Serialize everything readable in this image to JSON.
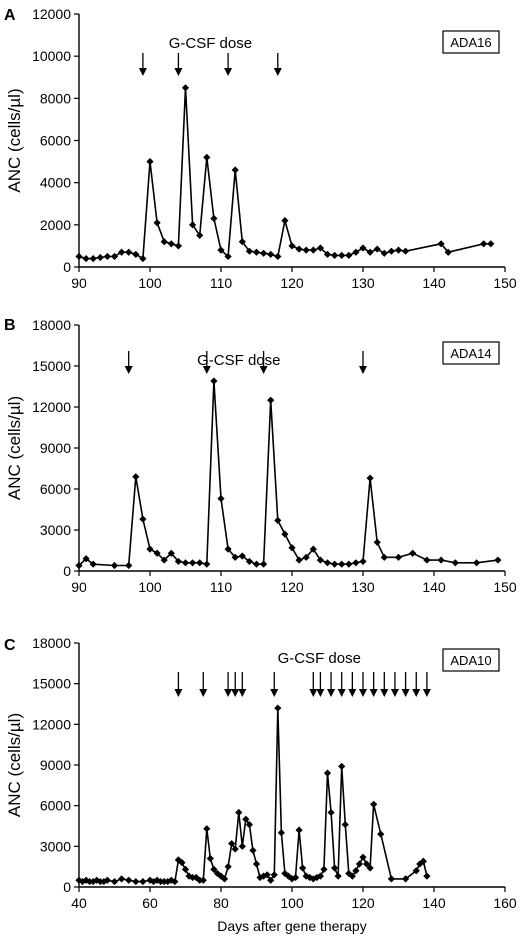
{
  "chart_data": [
    {
      "type": "line",
      "panel": "A",
      "tag": "ADA16",
      "annotation": "G-CSF dose",
      "ylabel": "ANC (cells/µl)",
      "xlabel": "",
      "xlim": [
        90,
        150
      ],
      "ylim": [
        0,
        12000
      ],
      "xticks": [
        90,
        100,
        110,
        120,
        130,
        140,
        150
      ],
      "yticks": [
        0,
        2000,
        4000,
        6000,
        8000,
        10000,
        12000
      ],
      "ytick_labels": [
        "0",
        "2000",
        "4000",
        "6000",
        "8000",
        "10000",
        "12000"
      ],
      "dose_days": [
        99,
        104,
        111,
        118
      ],
      "series": [
        {
          "x": [
            90,
            91,
            92,
            93,
            94,
            95,
            96,
            97,
            98,
            99,
            100,
            101,
            102,
            103,
            104,
            105,
            106,
            107,
            108,
            109,
            110,
            111,
            112,
            113,
            114,
            115,
            116,
            117,
            118,
            119,
            120,
            121,
            122,
            123,
            124,
            125,
            126,
            127,
            128,
            129,
            130,
            131,
            132,
            133,
            134,
            135,
            136,
            141,
            142,
            147,
            148
          ],
          "y": [
            500,
            400,
            400,
            450,
            500,
            500,
            700,
            700,
            600,
            400,
            5000,
            2100,
            1200,
            1100,
            1000,
            8500,
            2000,
            1500,
            5200,
            2300,
            800,
            500,
            4600,
            1200,
            750,
            700,
            650,
            600,
            500,
            2200,
            1000,
            850,
            800,
            800,
            900,
            600,
            550,
            550,
            550,
            700,
            900,
            700,
            850,
            650,
            750,
            800,
            750,
            1100,
            700,
            1100,
            1100
          ]
        }
      ]
    },
    {
      "type": "line",
      "panel": "B",
      "tag": "ADA14",
      "annotation": "G-CSF dose",
      "ylabel": "ANC (cells/µl)",
      "xlabel": "",
      "xlim": [
        90,
        150
      ],
      "ylim": [
        0,
        18000
      ],
      "xticks": [
        90,
        100,
        110,
        120,
        130,
        140,
        150
      ],
      "yticks": [
        0,
        3000,
        6000,
        9000,
        12000,
        15000,
        18000
      ],
      "ytick_labels": [
        "0",
        "3000",
        "6000",
        "9000",
        "12000",
        "15000",
        "18000"
      ],
      "dose_days": [
        97,
        108,
        116,
        130
      ],
      "series": [
        {
          "x": [
            90,
            91,
            92,
            95,
            97,
            98,
            99,
            100,
            101,
            102,
            103,
            104,
            105,
            106,
            107,
            108,
            109,
            110,
            111,
            112,
            113,
            114,
            115,
            116,
            117,
            118,
            119,
            120,
            121,
            122,
            123,
            124,
            125,
            126,
            127,
            128,
            129,
            130,
            131,
            132,
            133,
            135,
            137,
            139,
            141,
            143,
            146,
            149
          ],
          "y": [
            400,
            900,
            500,
            400,
            400,
            6900,
            3800,
            1600,
            1300,
            800,
            1300,
            700,
            600,
            600,
            600,
            500,
            13900,
            5300,
            1600,
            1000,
            1100,
            700,
            500,
            500,
            12500,
            3700,
            2700,
            1700,
            800,
            1000,
            1600,
            800,
            600,
            500,
            500,
            500,
            600,
            700,
            6800,
            2100,
            1000,
            1000,
            1300,
            800,
            800,
            600,
            600,
            800
          ]
        }
      ]
    },
    {
      "type": "line",
      "panel": "C",
      "tag": "ADA10",
      "annotation": "G-CSF dose",
      "ylabel": "ANC (cells/µl)",
      "xlabel": "Days after gene therapy",
      "xlim": [
        40,
        160
      ],
      "ylim": [
        0,
        18000
      ],
      "xticks": [
        40,
        60,
        80,
        100,
        120,
        140,
        160
      ],
      "yticks": [
        0,
        3000,
        6000,
        9000,
        12000,
        15000,
        18000
      ],
      "ytick_labels": [
        "0",
        "3000",
        "6000",
        "9000",
        "12000",
        "15000",
        "18000"
      ],
      "dose_days": [
        68,
        75,
        82,
        84,
        86,
        95,
        106,
        108,
        111,
        114,
        117,
        120,
        123,
        126,
        129,
        132,
        135,
        138
      ],
      "series": [
        {
          "x": [
            40,
            41,
            42,
            43,
            44,
            45,
            46,
            47,
            48,
            50,
            52,
            54,
            56,
            58,
            60,
            61,
            62,
            63,
            64,
            65,
            66,
            67,
            68,
            69,
            70,
            71,
            72,
            73,
            74,
            75,
            76,
            77,
            78,
            79,
            80,
            81,
            82,
            83,
            84,
            85,
            86,
            87,
            88,
            89,
            90,
            91,
            92,
            93,
            94,
            95,
            96,
            97,
            98,
            99,
            100,
            101,
            102,
            103,
            104,
            105,
            106,
            107,
            108,
            109,
            110,
            111,
            112,
            113,
            114,
            115,
            116,
            117,
            118,
            119,
            120,
            121,
            122,
            123,
            125,
            128,
            132,
            135,
            136,
            137,
            138
          ],
          "y": [
            500,
            400,
            500,
            400,
            400,
            500,
            400,
            400,
            500,
            400,
            600,
            500,
            400,
            400,
            500,
            400,
            500,
            400,
            400,
            400,
            500,
            400,
            2000,
            1800,
            1300,
            800,
            700,
            700,
            500,
            500,
            4300,
            2100,
            1300,
            1000,
            800,
            600,
            1500,
            3200,
            2800,
            5500,
            3000,
            5000,
            4600,
            2700,
            1700,
            700,
            800,
            900,
            500,
            900,
            13200,
            4000,
            1000,
            800,
            600,
            700,
            4200,
            1400,
            800,
            700,
            600,
            700,
            800,
            1300,
            8400,
            5500,
            1400,
            800,
            8900,
            4600,
            1000,
            800,
            1200,
            1700,
            2200,
            1700,
            1400,
            6100,
            3900,
            600,
            600,
            1200,
            1700,
            1900,
            800
          ]
        }
      ]
    }
  ]
}
